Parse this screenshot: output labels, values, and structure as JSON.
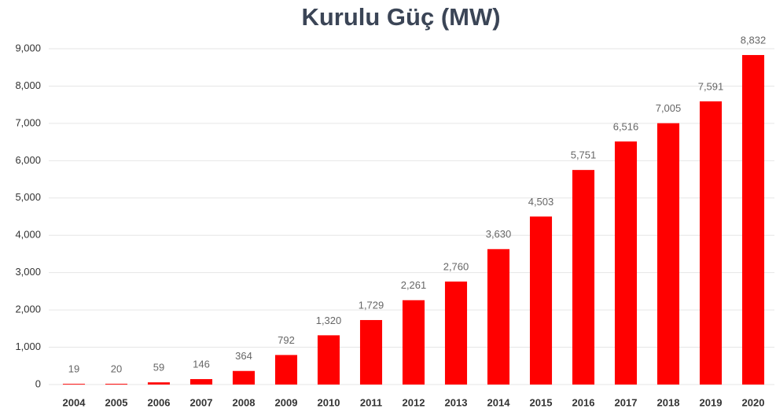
{
  "chart_data": {
    "type": "bar",
    "title": "Kurulu Güç (MW)",
    "categories": [
      "2004",
      "2005",
      "2006",
      "2007",
      "2008",
      "2009",
      "2010",
      "2011",
      "2012",
      "2013",
      "2014",
      "2015",
      "2016",
      "2017",
      "2018",
      "2019",
      "2020"
    ],
    "values": [
      19,
      20,
      59,
      146,
      364,
      792,
      1320,
      1729,
      2261,
      2760,
      3630,
      4503,
      5751,
      6516,
      7005,
      7591,
      8832
    ],
    "value_labels": [
      "19",
      "20",
      "59",
      "146",
      "364",
      "792",
      "1,320",
      "1,729",
      "2,261",
      "2,760",
      "3,630",
      "4,503",
      "5,751",
      "6,516",
      "7,005",
      "7,591",
      "8,832"
    ],
    "color": "#ff0000",
    "ylim": [
      0,
      9000
    ],
    "yticks": [
      0,
      {
        "value": 1000,
        "label": "1,000"
      },
      {
        "value": 2000,
        "label": "2,000"
      },
      {
        "value": 3000,
        "label": "3,000"
      },
      {
        "value": 4000,
        "label": "4,000"
      },
      {
        "value": 5000,
        "label": "5,000"
      },
      {
        "value": 6000,
        "label": "6,000"
      },
      {
        "value": 7000,
        "label": "7,000"
      },
      {
        "value": 8000,
        "label": "8,000"
      },
      {
        "value": 9000,
        "label": "9,000"
      }
    ],
    "grid": true
  }
}
